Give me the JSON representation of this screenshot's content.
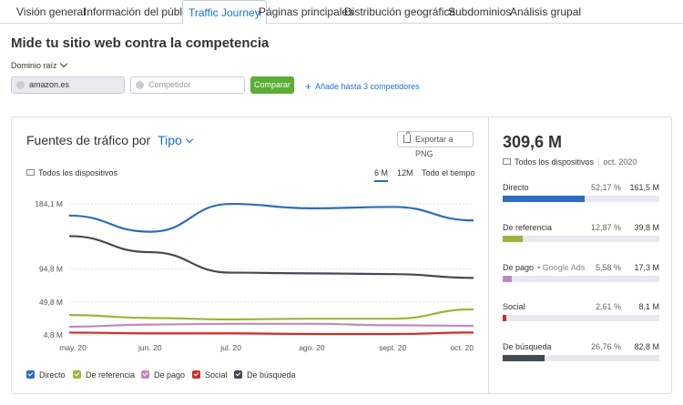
{
  "tabs": [
    {
      "label": "Visión general"
    },
    {
      "label": "Información del público"
    },
    {
      "label": "Traffic Journey"
    },
    {
      "label": "Páginas principales"
    },
    {
      "label": "Distribución geográfica"
    },
    {
      "label": "Subdominios"
    },
    {
      "label": "Análisis grupal"
    }
  ],
  "active_tab": "Traffic Journey",
  "heading": "Mide tu sitio web contra la competencia",
  "root_domain_label": "Dominio raíz",
  "domain_input": {
    "value": "amazon.es"
  },
  "competitor_input": {
    "placeholder": "Competidor"
  },
  "compare_button": "Comparar",
  "add_competitors": "Añade hasta 3 competidores",
  "chart_header": {
    "title": "Fuentes de tráfico por",
    "type_selector": "Tipo"
  },
  "export_button": "Exportar a PNG",
  "devices_label": "Todos los dispositivos",
  "periods": [
    {
      "label": "6 M",
      "active": true
    },
    {
      "label": "12M",
      "active": false
    },
    {
      "label": "Todo el tiempo",
      "active": false
    }
  ],
  "chart_data": {
    "type": "line",
    "x": [
      "may. 20",
      "jun. 20",
      "jul. 20",
      "ago. 20",
      "sept. 20",
      "oct. 20"
    ],
    "y_ticks": [
      "184,1 M",
      "94,8 M",
      "49,8 M",
      "4,8 M"
    ],
    "series": [
      {
        "name": "Directo",
        "color": "#2d6cc0",
        "values": [
          168,
          146,
          184,
          178,
          180,
          161.5
        ]
      },
      {
        "name": "De referencia",
        "color": "#9bb63a",
        "values": [
          32,
          28,
          26,
          27,
          27,
          39.8
        ]
      },
      {
        "name": "De pago",
        "color": "#c08ac0",
        "values": [
          16,
          19,
          20,
          20,
          18,
          17.3
        ]
      },
      {
        "name": "Social",
        "color": "#c9302c",
        "values": [
          8,
          7,
          7,
          6,
          6,
          8.1
        ]
      },
      {
        "name": "De búsqueda",
        "color": "#434a51",
        "values": [
          140,
          118,
          90,
          89,
          88,
          82.8
        ]
      }
    ],
    "legend_position": "bottom",
    "grid": true
  },
  "summary": {
    "total": "309,6 M",
    "devices": "Todos los dispositivos",
    "date": "oct. 2020"
  },
  "sources": [
    {
      "name": "Directo",
      "sub": "",
      "pct": "52,17 %",
      "value": "161,5 M",
      "share": 0.5217,
      "color": "#2d6cc0"
    },
    {
      "name": "De referencia",
      "sub": "",
      "pct": "12,87 %",
      "value": "39,8 M",
      "share": 0.1287,
      "color": "#9bb63a"
    },
    {
      "name": "De pago",
      "sub": "Google Ads",
      "pct": "5,58 %",
      "value": "17,3 M",
      "share": 0.0558,
      "color": "#c08ac0"
    },
    {
      "name": "Social",
      "sub": "",
      "pct": "2,61 %",
      "value": "8,1 M",
      "share": 0.0261,
      "color": "#c9302c"
    },
    {
      "name": "De búsqueda",
      "sub": "",
      "pct": "26,76 %",
      "value": "82,8 M",
      "share": 0.2676,
      "color": "#434a51"
    }
  ]
}
